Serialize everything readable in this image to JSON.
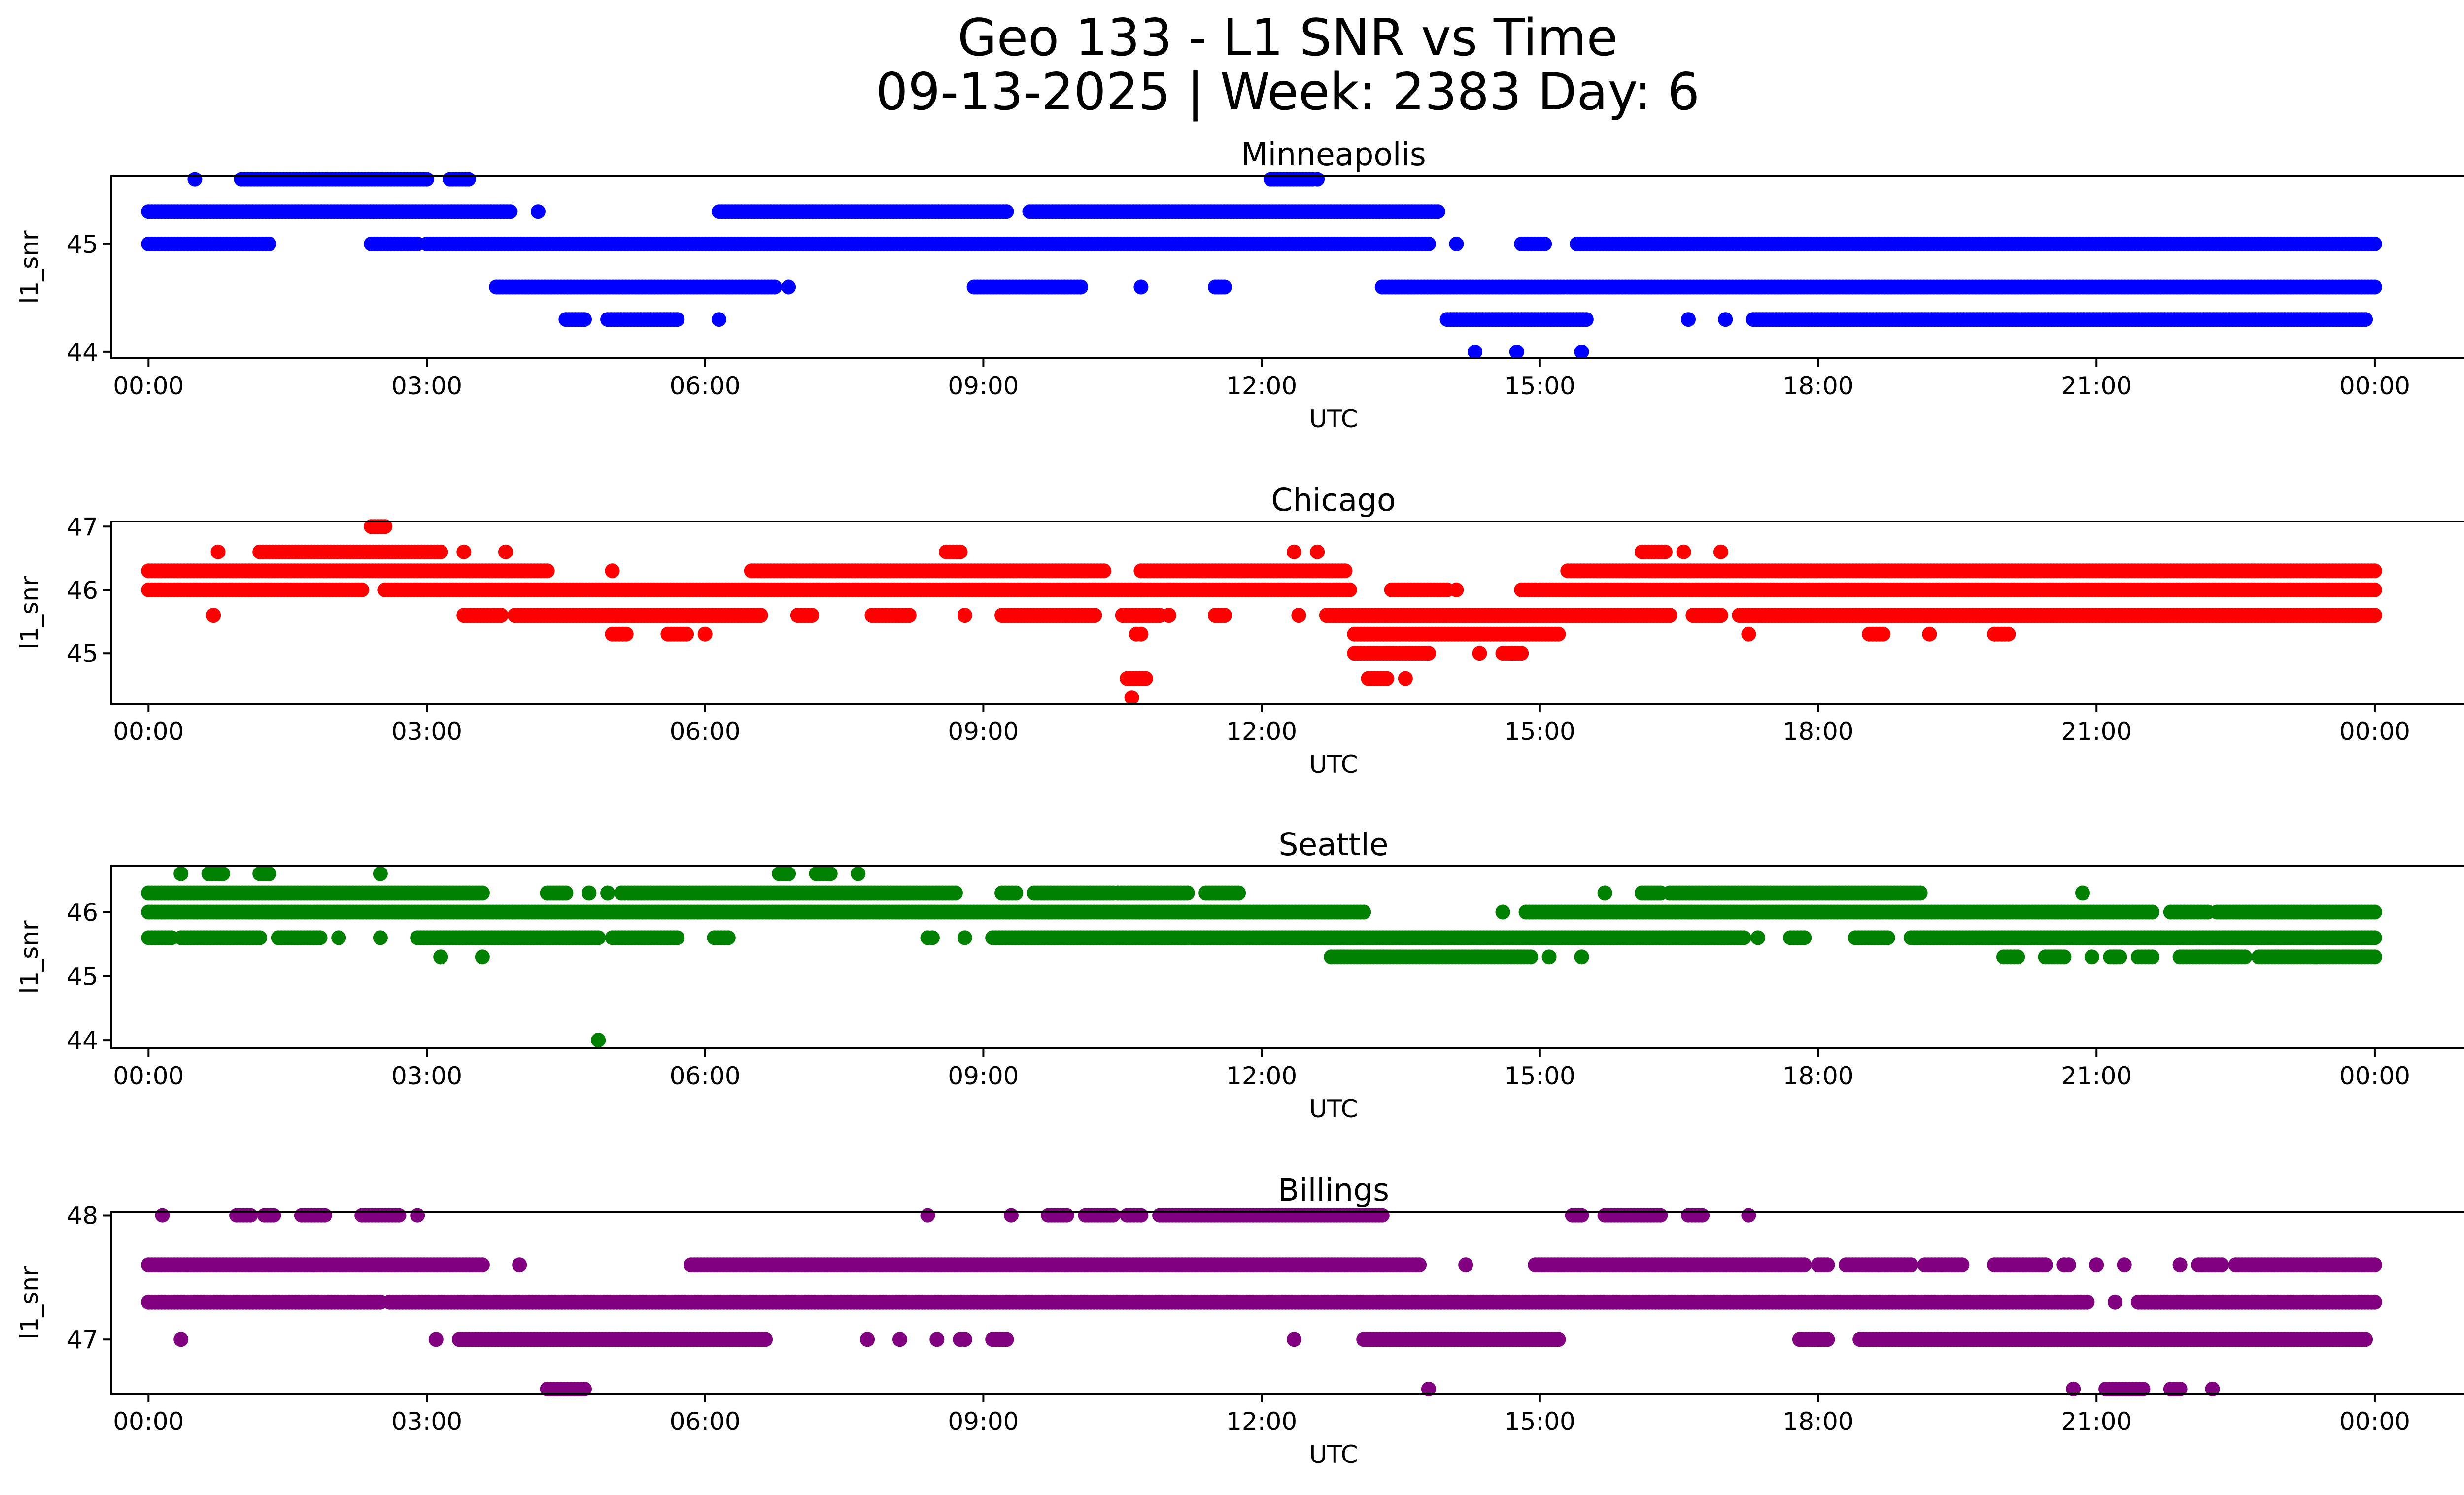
{
  "figure": {
    "title": "Geo 133 - L1 SNR vs Time",
    "subtitle": "09-13-2025 | Week: 2383 Day: 6"
  },
  "chart_data": [
    {
      "type": "scatter",
      "title": "Minneapolis",
      "color": "#0000ff",
      "xlabel": "UTC",
      "ylabel": "l1_snr",
      "x_unit": "hours UTC",
      "xlim": [
        -0.4,
        25.95
      ],
      "ylim": [
        43.94,
        45.63
      ],
      "xticks": [
        0,
        3,
        6,
        9,
        12,
        15,
        18,
        21,
        24
      ],
      "xticklabels": [
        "00:00",
        "03:00",
        "06:00",
        "09:00",
        "12:00",
        "15:00",
        "18:00",
        "21:00",
        "00:00"
      ],
      "yticks": [
        44,
        45
      ],
      "yticklabels": [
        "44",
        "45"
      ],
      "bands": [
        {
          "y": 45.6,
          "segments": [
            [
              0.5,
              0.5
            ],
            [
              1.0,
              3.0
            ],
            [
              3.25,
              3.45
            ],
            [
              12.1,
              12.55
            ]
          ]
        },
        {
          "y": 45.3,
          "segments": [
            [
              0.0,
              3.9
            ],
            [
              4.2,
              4.2
            ],
            [
              6.15,
              9.25
            ],
            [
              9.5,
              13.9
            ]
          ]
        },
        {
          "y": 45.0,
          "segments": [
            [
              0.0,
              1.3
            ],
            [
              2.4,
              2.9
            ],
            [
              3.0,
              13.8
            ],
            [
              14.1,
              14.1
            ],
            [
              14.8,
              15.05
            ],
            [
              15.4,
              24.0
            ]
          ]
        },
        {
          "y": 44.6,
          "segments": [
            [
              3.75,
              6.75
            ],
            [
              6.9,
              6.9
            ],
            [
              8.9,
              10.05
            ],
            [
              10.7,
              10.7
            ],
            [
              11.5,
              11.6
            ],
            [
              13.3,
              24.0
            ]
          ]
        },
        {
          "y": 44.3,
          "segments": [
            [
              4.5,
              4.7
            ],
            [
              4.95,
              5.7
            ],
            [
              6.15,
              6.15
            ],
            [
              14.0,
              15.5
            ],
            [
              16.6,
              16.6
            ],
            [
              17.0,
              17.0
            ],
            [
              17.3,
              23.9
            ]
          ]
        },
        {
          "y": 44.0,
          "segments": [
            [
              14.3,
              14.3
            ],
            [
              14.75,
              14.75
            ],
            [
              15.45,
              15.45
            ]
          ]
        },
        {
          "y": 45.6,
          "segments": [
            [
              12.6,
              12.6
            ]
          ]
        }
      ]
    },
    {
      "type": "scatter",
      "title": "Chicago",
      "color": "#ff0000",
      "xlabel": "UTC",
      "ylabel": "l1_snr",
      "x_unit": "hours UTC",
      "xlim": [
        -0.4,
        25.95
      ],
      "ylim": [
        44.2,
        47.08
      ],
      "xticks": [
        0,
        3,
        6,
        9,
        12,
        15,
        18,
        21,
        24
      ],
      "xticklabels": [
        "00:00",
        "03:00",
        "06:00",
        "09:00",
        "12:00",
        "15:00",
        "18:00",
        "21:00",
        "00:00"
      ],
      "yticks": [
        45,
        46,
        47
      ],
      "yticklabels": [
        "45",
        "46",
        "47"
      ],
      "bands": [
        {
          "y": 47.0,
          "segments": [
            [
              2.4,
              2.55
            ]
          ]
        },
        {
          "y": 46.6,
          "segments": [
            [
              0.75,
              0.75
            ],
            [
              1.2,
              3.15
            ],
            [
              3.4,
              3.4
            ],
            [
              3.85,
              3.85
            ],
            [
              8.6,
              8.75
            ],
            [
              12.35,
              12.35
            ],
            [
              12.6,
              12.6
            ],
            [
              16.1,
              16.35
            ],
            [
              16.55,
              16.55
            ],
            [
              16.95,
              16.95
            ]
          ]
        },
        {
          "y": 46.3,
          "segments": [
            [
              0.0,
              4.3
            ],
            [
              5.0,
              5.0
            ],
            [
              6.5,
              10.3
            ],
            [
              10.7,
              12.9
            ],
            [
              15.3,
              24.0
            ]
          ]
        },
        {
          "y": 46.0,
          "segments": [
            [
              0.0,
              2.3
            ],
            [
              2.55,
              10.7
            ],
            [
              10.7,
              12.95
            ],
            [
              13.4,
              14.0
            ],
            [
              14.1,
              14.1
            ],
            [
              14.8,
              14.95
            ],
            [
              15.0,
              24.0
            ]
          ]
        },
        {
          "y": 45.6,
          "segments": [
            [
              0.7,
              0.7
            ],
            [
              3.4,
              3.8
            ],
            [
              3.95,
              6.6
            ],
            [
              7.0,
              7.15
            ],
            [
              7.8,
              8.2
            ],
            [
              8.8,
              8.8
            ],
            [
              9.2,
              10.2
            ],
            [
              10.5,
              10.9
            ],
            [
              11.0,
              11.0
            ],
            [
              11.5,
              11.6
            ],
            [
              12.4,
              12.4
            ],
            [
              12.7,
              16.4
            ],
            [
              16.65,
              16.95
            ],
            [
              17.15,
              24.0
            ]
          ]
        },
        {
          "y": 45.3,
          "segments": [
            [
              5.0,
              5.15
            ],
            [
              5.6,
              5.8
            ],
            [
              6.0,
              6.0
            ],
            [
              10.65,
              10.7
            ],
            [
              13.0,
              15.2
            ],
            [
              18.55,
              18.7
            ],
            [
              19.2,
              19.2
            ],
            [
              19.9,
              20.05
            ],
            [
              17.25,
              17.25
            ]
          ]
        },
        {
          "y": 45.0,
          "segments": [
            [
              13.0,
              13.8
            ],
            [
              14.35,
              14.35
            ],
            [
              14.6,
              14.8
            ]
          ]
        },
        {
          "y": 44.6,
          "segments": [
            [
              10.55,
              10.75
            ],
            [
              13.15,
              13.35
            ],
            [
              13.55,
              13.55
            ]
          ]
        },
        {
          "y": 44.3,
          "segments": [
            [
              10.6,
              10.6
            ]
          ]
        }
      ]
    },
    {
      "type": "scatter",
      "title": "Seattle",
      "color": "#008000",
      "xlabel": "UTC",
      "ylabel": "l1_snr",
      "x_unit": "hours UTC",
      "xlim": [
        -0.4,
        25.95
      ],
      "ylim": [
        43.87,
        46.72
      ],
      "xticks": [
        0,
        3,
        6,
        9,
        12,
        15,
        18,
        21,
        24
      ],
      "xticklabels": [
        "00:00",
        "03:00",
        "06:00",
        "09:00",
        "12:00",
        "15:00",
        "18:00",
        "21:00",
        "00:00"
      ],
      "yticks": [
        44,
        45,
        46
      ],
      "yticklabels": [
        "44",
        "45",
        "46"
      ],
      "bands": [
        {
          "y": 46.6,
          "segments": [
            [
              0.35,
              0.35
            ],
            [
              0.65,
              0.8
            ],
            [
              1.2,
              1.3
            ],
            [
              2.5,
              2.5
            ],
            [
              6.8,
              6.9
            ],
            [
              7.2,
              7.35
            ],
            [
              7.65,
              7.65
            ]
          ]
        },
        {
          "y": 46.3,
          "segments": [
            [
              0.0,
              3.6
            ],
            [
              4.3,
              4.5
            ],
            [
              4.75,
              4.75
            ],
            [
              4.95,
              4.95
            ],
            [
              5.1,
              8.7
            ],
            [
              9.2,
              9.35
            ],
            [
              9.55,
              10.4
            ],
            [
              10.45,
              11.2
            ],
            [
              11.4,
              11.75
            ],
            [
              15.7,
              15.7
            ],
            [
              16.1,
              16.3
            ],
            [
              16.4,
              19.1
            ],
            [
              20.85,
              20.85
            ]
          ]
        },
        {
          "y": 46.0,
          "segments": [
            [
              0.0,
              13.1
            ],
            [
              14.6,
              14.6
            ],
            [
              14.85,
              21.6
            ],
            [
              21.8,
              22.2
            ],
            [
              22.3,
              24.0
            ]
          ]
        },
        {
          "y": 45.6,
          "segments": [
            [
              0.0,
              0.25
            ],
            [
              0.35,
              1.2
            ],
            [
              1.4,
              1.85
            ],
            [
              2.05,
              2.05
            ],
            [
              2.5,
              2.5
            ],
            [
              2.9,
              4.85
            ],
            [
              5.0,
              5.7
            ],
            [
              6.1,
              6.25
            ],
            [
              8.4,
              8.45
            ],
            [
              8.8,
              8.8
            ],
            [
              9.1,
              17.2
            ],
            [
              17.35,
              17.35
            ],
            [
              17.7,
              17.85
            ],
            [
              18.4,
              18.75
            ],
            [
              19.0,
              24.0
            ]
          ]
        },
        {
          "y": 45.3,
          "segments": [
            [
              3.15,
              3.15
            ],
            [
              3.6,
              3.6
            ],
            [
              12.75,
              14.9
            ],
            [
              15.1,
              15.1
            ],
            [
              15.45,
              15.45
            ],
            [
              20.0,
              20.15
            ],
            [
              20.45,
              20.65
            ],
            [
              20.95,
              20.95
            ],
            [
              21.15,
              21.25
            ],
            [
              21.45,
              21.6
            ],
            [
              21.9,
              22.6
            ],
            [
              22.75,
              24.0
            ]
          ]
        },
        {
          "y": 44.0,
          "segments": [
            [
              4.85,
              4.85
            ]
          ]
        }
      ]
    },
    {
      "type": "scatter",
      "title": "Billings",
      "color": "#800080",
      "xlabel": "UTC",
      "ylabel": "l1_snr",
      "x_unit": "hours UTC",
      "xlim": [
        -0.4,
        25.95
      ],
      "ylim": [
        46.56,
        48.03
      ],
      "xticks": [
        0,
        3,
        6,
        9,
        12,
        15,
        18,
        21,
        24
      ],
      "xticklabels": [
        "00:00",
        "03:00",
        "06:00",
        "09:00",
        "12:00",
        "15:00",
        "18:00",
        "21:00",
        "00:00"
      ],
      "yticks": [
        47,
        48
      ],
      "yticklabels": [
        "47",
        "48"
      ],
      "bands": [
        {
          "y": 48.0,
          "segments": [
            [
              0.15,
              0.15
            ],
            [
              0.95,
              1.1
            ],
            [
              1.25,
              1.35
            ],
            [
              1.65,
              1.9
            ],
            [
              2.3,
              2.7
            ],
            [
              2.9,
              2.9
            ],
            [
              8.4,
              8.4
            ],
            [
              9.3,
              9.3
            ],
            [
              9.7,
              9.9
            ],
            [
              10.1,
              10.4
            ],
            [
              10.55,
              10.7
            ],
            [
              10.9,
              13.3
            ],
            [
              15.35,
              15.45
            ],
            [
              15.7,
              16.3
            ],
            [
              16.6,
              16.75
            ],
            [
              17.25,
              17.25
            ]
          ]
        },
        {
          "y": 47.6,
          "segments": [
            [
              0.0,
              3.6
            ],
            [
              4.0,
              4.0
            ],
            [
              5.85,
              13.7
            ],
            [
              14.2,
              14.2
            ],
            [
              14.95,
              17.85
            ],
            [
              18.0,
              18.1
            ],
            [
              18.3,
              19.0
            ],
            [
              19.15,
              19.55
            ],
            [
              19.9,
              20.45
            ],
            [
              20.65,
              20.7
            ],
            [
              21.0,
              21.0
            ],
            [
              21.3,
              21.3
            ],
            [
              21.9,
              21.9
            ],
            [
              22.1,
              22.35
            ],
            [
              22.5,
              24.0
            ]
          ]
        },
        {
          "y": 47.3,
          "segments": [
            [
              0.0,
              2.5
            ],
            [
              2.6,
              20.9
            ],
            [
              21.2,
              21.2
            ],
            [
              21.45,
              24.0
            ]
          ]
        },
        {
          "y": 47.0,
          "segments": [
            [
              0.35,
              0.35
            ],
            [
              3.1,
              3.1
            ],
            [
              3.35,
              6.65
            ],
            [
              7.75,
              7.75
            ],
            [
              8.1,
              8.1
            ],
            [
              8.5,
              8.5
            ],
            [
              8.75,
              8.8
            ],
            [
              9.1,
              9.25
            ],
            [
              12.35,
              12.35
            ],
            [
              13.1,
              15.2
            ],
            [
              17.8,
              18.1
            ],
            [
              18.45,
              23.9
            ]
          ]
        },
        {
          "y": 46.6,
          "segments": [
            [
              4.3,
              4.7
            ],
            [
              13.8,
              13.8
            ],
            [
              20.75,
              20.75
            ],
            [
              21.1,
              21.5
            ],
            [
              21.8,
              21.9
            ],
            [
              22.25,
              22.25
            ]
          ]
        }
      ]
    }
  ]
}
